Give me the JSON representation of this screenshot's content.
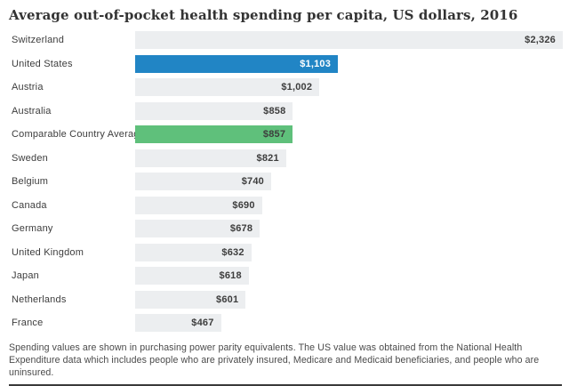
{
  "title": "Average out-of-pocket health spending per capita, US dollars, 2016",
  "footnote": "Spending values are shown in purchasing power parity equivalents. The US value was obtained from the National Health Expenditure data which includes people who are privately insured, Medicare and Medicaid beneficiaries, and people who are uninsured.",
  "chart_data": {
    "type": "bar",
    "orientation": "horizontal",
    "title": "Average out-of-pocket health spending per capita, US dollars, 2016",
    "xlabel": "",
    "ylabel": "",
    "xlim": [
      0,
      2326
    ],
    "grid": false,
    "legend": "none",
    "categories": [
      "Switzerland",
      "United States",
      "Austria",
      "Australia",
      "Comparable Country Average",
      "Sweden",
      "Belgium",
      "Canada",
      "Germany",
      "United Kingdom",
      "Japan",
      "Netherlands",
      "France"
    ],
    "values": [
      2326,
      1103,
      1002,
      858,
      857,
      821,
      740,
      690,
      678,
      632,
      618,
      601,
      467
    ],
    "value_labels": [
      "$2,326",
      "$1,103",
      "$1,002",
      "$858",
      "$857",
      "$821",
      "$740",
      "$690",
      "$678",
      "$632",
      "$618",
      "$601",
      "$467"
    ],
    "bar_color_keys": [
      "default",
      "highlight_us",
      "default",
      "default",
      "highlight_average",
      "default",
      "default",
      "default",
      "default",
      "default",
      "default",
      "default",
      "default"
    ],
    "palette": {
      "default": {
        "bar": "#eceef0",
        "text": "#3d3d3d"
      },
      "highlight_us": {
        "bar": "#2185c5",
        "text": "#ffffff"
      },
      "highlight_average": {
        "bar": "#5fc07b",
        "text": "#3d3d3d"
      }
    }
  }
}
